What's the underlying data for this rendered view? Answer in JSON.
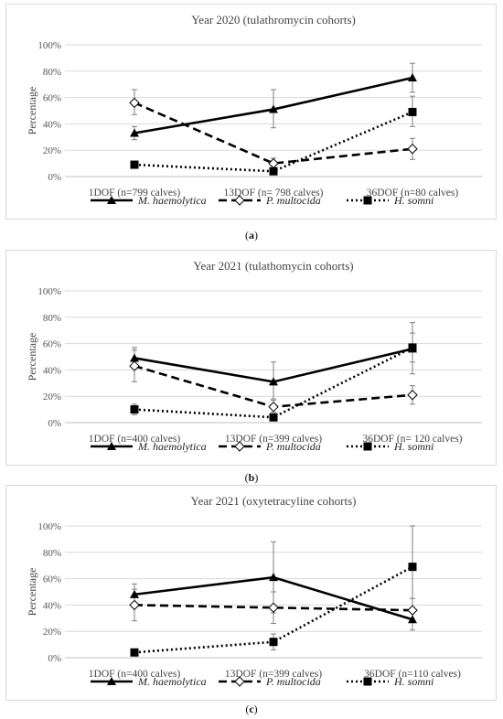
{
  "figure": {
    "panels": [
      {
        "label_open": "(",
        "label_letter": "a",
        "label_close": ")"
      },
      {
        "label_open": "(",
        "label_letter": "b",
        "label_close": ")"
      },
      {
        "label_open": "(",
        "label_letter": "c",
        "label_close": ")"
      }
    ]
  },
  "chart_data": [
    {
      "type": "line",
      "title": "Year 2020 (tulathromycin cohorts)",
      "ylabel": "Percentage",
      "xlabel": "",
      "ylim": [
        0,
        100
      ],
      "yticks": [
        "0%",
        "20%",
        "40%",
        "60%",
        "80%",
        "100%"
      ],
      "categories": [
        "1DOF (n=799 calves)",
        "13DOF (n= 798 calves)",
        "36DOF (n=80 calves)"
      ],
      "grid": "horizontal",
      "legend_position": "bottom",
      "series": [
        {
          "name": "M. haemolytica",
          "marker": "triangle",
          "dash": "solid",
          "values": [
            33,
            51,
            75
          ],
          "err_low": [
            28,
            37,
            64
          ],
          "err_high": [
            38,
            66,
            86
          ]
        },
        {
          "name": "P. multocida",
          "marker": "diamond",
          "dash": "dashed",
          "values": [
            56,
            10,
            21
          ],
          "err_low": [
            47,
            6,
            13
          ],
          "err_high": [
            66,
            14,
            29
          ]
        },
        {
          "name": "H. somni",
          "marker": "square",
          "dash": "dotted",
          "values": [
            9,
            4,
            49
          ],
          "err_low": [
            7,
            3,
            38
          ],
          "err_high": [
            11,
            5,
            61
          ]
        }
      ]
    },
    {
      "type": "line",
      "title": "Year 2021 (tulathomycin cohorts)",
      "ylabel": "Percentage",
      "xlabel": "",
      "ylim": [
        0,
        100
      ],
      "yticks": [
        "0%",
        "20%",
        "40%",
        "60%",
        "80%",
        "100%"
      ],
      "categories": [
        "1DOF (n=400 calves)",
        "13DOF (n=399 calves)",
        "36DOF (n= 120 calves)"
      ],
      "grid": "horizontal",
      "legend_position": "bottom",
      "series": [
        {
          "name": "M. haemolytica",
          "marker": "triangle",
          "dash": "solid",
          "values": [
            49,
            31,
            56
          ],
          "err_low": [
            41,
            18,
            37
          ],
          "err_high": [
            57,
            46,
            76
          ]
        },
        {
          "name": "P. multocida",
          "marker": "diamond",
          "dash": "dashed",
          "values": [
            43,
            12,
            21
          ],
          "err_low": [
            31,
            8,
            14
          ],
          "err_high": [
            55,
            17,
            28
          ]
        },
        {
          "name": "H. somni",
          "marker": "square",
          "dash": "dotted",
          "values": [
            10,
            4,
            57
          ],
          "err_low": [
            6,
            2,
            46
          ],
          "err_high": [
            14,
            6,
            68
          ]
        }
      ]
    },
    {
      "type": "line",
      "title": "Year 2021 (oxytetracyline cohorts)",
      "ylabel": "Percentage",
      "xlabel": "",
      "ylim": [
        0,
        100
      ],
      "yticks": [
        "0%",
        "20%",
        "40%",
        "60%",
        "80%",
        "100%"
      ],
      "categories": [
        "1DOF (n=400 calves)",
        "13DOF (n=399 calves)",
        "36DOF (n=110 calves)"
      ],
      "grid": "horizontal",
      "legend_position": "bottom",
      "series": [
        {
          "name": "M. haemolytica",
          "marker": "triangle",
          "dash": "solid",
          "values": [
            48,
            61,
            29
          ],
          "err_low": [
            40,
            34,
            21
          ],
          "err_high": [
            56,
            88,
            37
          ]
        },
        {
          "name": "P. multocida",
          "marker": "diamond",
          "dash": "dashed",
          "values": [
            40,
            38,
            36
          ],
          "err_low": [
            28,
            26,
            27
          ],
          "err_high": [
            52,
            50,
            45
          ]
        },
        {
          "name": "H. somni",
          "marker": "square",
          "dash": "dotted",
          "values": [
            4,
            12,
            69
          ],
          "err_low": [
            3,
            6,
            38
          ],
          "err_high": [
            5,
            18,
            100
          ]
        }
      ]
    }
  ]
}
